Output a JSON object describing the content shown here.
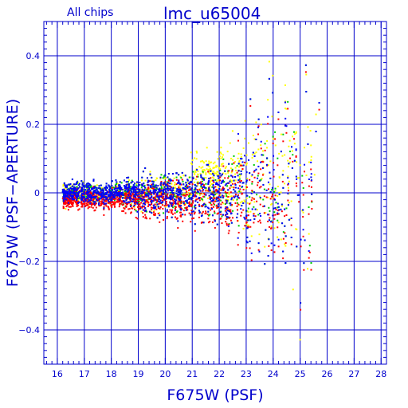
{
  "chart_data": {
    "type": "scatter",
    "title": "lmc_u65004",
    "subtitle": "All chips",
    "xlabel": "F675W (PSF)",
    "ylabel": "F675W (PSF−APERTURE)",
    "xlim": [
      15.5,
      28.2
    ],
    "ylim": [
      -0.5,
      0.5
    ],
    "x_ticks": [
      16,
      17,
      18,
      19,
      20,
      21,
      22,
      23,
      24,
      25,
      26,
      27,
      28
    ],
    "y_ticks": [
      -0.4,
      -0.2,
      0,
      0.2,
      0.4
    ],
    "y_tick_labels": [
      "−0.4",
      "−0.2",
      "0",
      "0.2",
      "0.4"
    ],
    "grid": true,
    "series_colors": [
      "#ffff00",
      "#00cc00",
      "#ff0000",
      "#0000ff"
    ],
    "distribution": {
      "description_free": true,
      "mag_min": 16.2,
      "mag_max": 25.8,
      "sharp_cutoff_at": 25.6,
      "scatter_center": 0.0,
      "scatter_sigma_at_18": 0.015,
      "scatter_sigma_at_22": 0.04,
      "scatter_sigma_at_25": 0.17,
      "positive_skew_at_faint_end": 0.06,
      "points_per_series": 1100
    }
  }
}
